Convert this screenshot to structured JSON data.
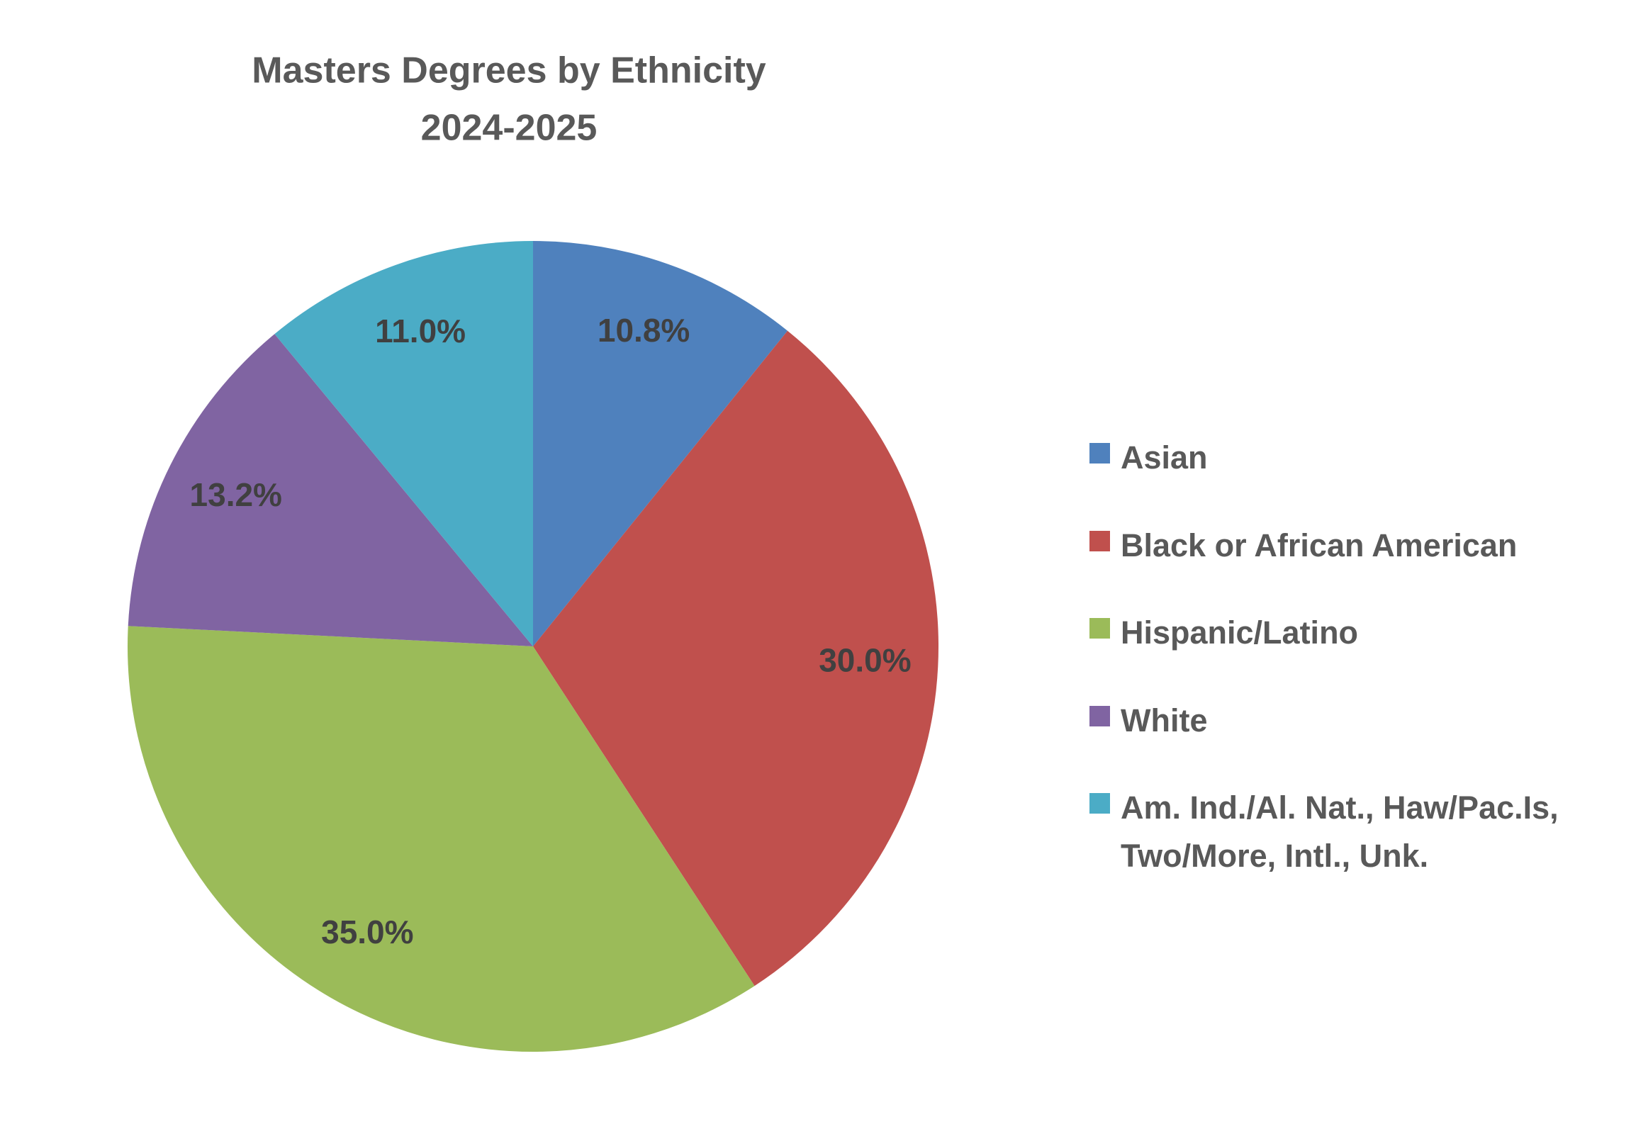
{
  "chart_data": {
    "type": "pie",
    "title": [
      "Masters Degrees by Ethnicity",
      "2024-2025"
    ],
    "categories": [
      "Asian",
      "Black or African American",
      "Hispanic/Latino",
      "White",
      "Am. Ind./Al. Nat., Haw/Pac.Is, Two/More, Intl., Unk."
    ],
    "values": [
      10.8,
      30.0,
      35.0,
      13.2,
      11.0
    ],
    "value_labels": [
      "10.8%",
      "30.0%",
      "35.0%",
      "13.2%",
      "11.0%"
    ],
    "colors": [
      "#4f81bd",
      "#c0504d",
      "#9bbb59",
      "#8064a2",
      "#4bacc6"
    ],
    "legend": "right"
  }
}
